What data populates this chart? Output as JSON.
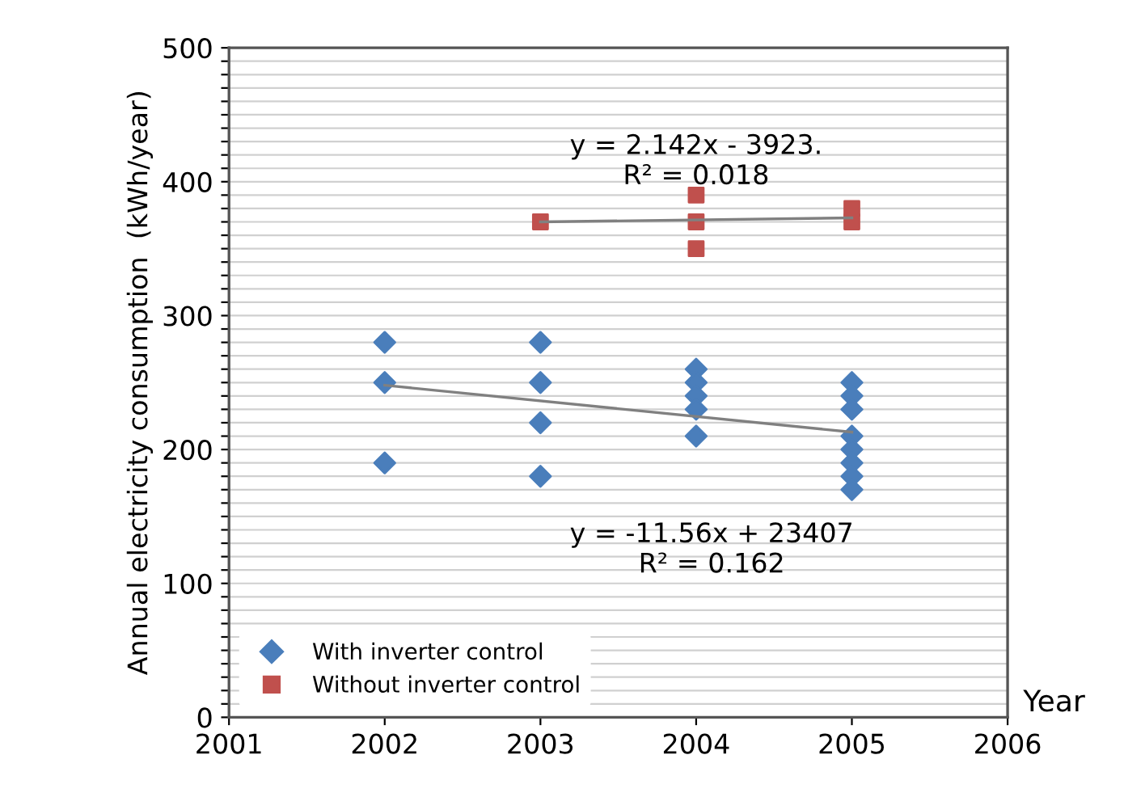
{
  "chart_data": {
    "type": "scatter",
    "xlabel": "Year",
    "ylabel": "Annual electricity consumption  (kWh/year)",
    "xlim": [
      2001,
      2006
    ],
    "xticks": [
      2001,
      2002,
      2003,
      2004,
      2005,
      2006
    ],
    "ylim": [
      0,
      500
    ],
    "yticks": [
      0,
      {
        "value": 10,
        "label": null
      },
      {
        "value": 20,
        "label": null
      },
      {
        "value": 30,
        "label": null
      },
      {
        "value": 40,
        "label": null
      },
      {
        "value": 50,
        "label": null
      },
      {
        "value": 60,
        "label": null
      },
      {
        "value": 70,
        "label": null
      },
      {
        "value": 80,
        "label": null
      },
      {
        "value": 90,
        "label": null
      },
      100,
      {
        "value": 110,
        "label": null
      },
      {
        "value": 120,
        "label": null
      },
      {
        "value": 130,
        "label": null
      },
      {
        "value": 140,
        "label": null
      },
      {
        "value": 150,
        "label": null
      },
      {
        "value": 160,
        "label": null
      },
      {
        "value": 170,
        "label": null
      },
      {
        "value": 180,
        "label": null
      },
      {
        "value": 190,
        "label": null
      },
      200,
      {
        "value": 210,
        "label": null
      },
      {
        "value": 220,
        "label": null
      },
      {
        "value": 230,
        "label": null
      },
      {
        "value": 240,
        "label": null
      },
      {
        "value": 250,
        "label": null
      },
      {
        "value": 260,
        "label": null
      },
      {
        "value": 270,
        "label": null
      },
      {
        "value": 280,
        "label": null
      },
      {
        "value": 290,
        "label": null
      },
      300,
      {
        "value": 310,
        "label": null
      },
      {
        "value": 320,
        "label": null
      },
      {
        "value": 330,
        "label": null
      },
      {
        "value": 340,
        "label": null
      },
      {
        "value": 350,
        "label": null
      },
      {
        "value": 360,
        "label": null
      },
      {
        "value": 370,
        "label": null
      },
      {
        "value": 380,
        "label": null
      },
      {
        "value": 390,
        "label": null
      },
      400,
      {
        "value": 410,
        "label": null
      },
      {
        "value": 420,
        "label": null
      },
      {
        "value": 430,
        "label": null
      },
      {
        "value": 440,
        "label": null
      },
      {
        "value": 450,
        "label": null
      },
      {
        "value": 460,
        "label": null
      },
      {
        "value": 470,
        "label": null
      },
      {
        "value": 480,
        "label": null
      },
      {
        "value": 490,
        "label": null
      },
      500
    ],
    "grid": "y",
    "legend": "bottom left",
    "series": [
      {
        "name": "With inverter control",
        "marker": "diamond",
        "color": "#4a7ebb",
        "x": [
          2002,
          2002,
          2002,
          2003,
          2003,
          2003,
          2003,
          2004,
          2004,
          2004,
          2004,
          2004,
          2005,
          2005,
          2005,
          2005,
          2005,
          2005,
          2005,
          2005
        ],
        "values": [
          280,
          250,
          190,
          280,
          250,
          220,
          180,
          260,
          250,
          240,
          230,
          210,
          250,
          240,
          230,
          210,
          200,
          190,
          180,
          170
        ]
      },
      {
        "name": "Without inverter control",
        "marker": "square",
        "color": "#c0504d",
        "x": [
          2003,
          2004,
          2004,
          2004,
          2005,
          2005
        ],
        "values": [
          370,
          390,
          370,
          350,
          380,
          370
        ]
      },
      {
        "type": "line",
        "color": "#808080",
        "x": [
          2002,
          2005
        ],
        "values": [
          248,
          213
        ]
      },
      {
        "type": "line",
        "color": "#808080",
        "x": [
          2003,
          2005
        ],
        "values": [
          370,
          373
        ]
      }
    ],
    "annotations": [
      "y = 2.142x - 3923.\nR² = 0.018",
      "y = -11.56x + 23407\nR² = 0.162"
    ]
  }
}
